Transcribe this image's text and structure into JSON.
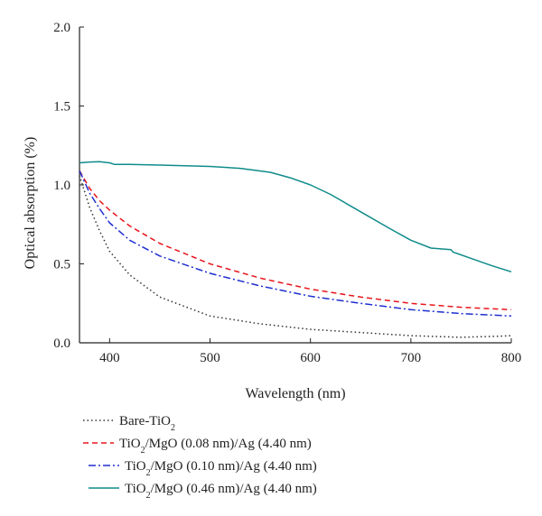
{
  "chart_data": {
    "type": "line",
    "xlabel": "Wavelength (nm)",
    "ylabel": "Optical absorption (%)",
    "xlim": [
      370,
      800
    ],
    "ylim": [
      0,
      2.0
    ],
    "x_ticks": [
      400,
      500,
      600,
      700,
      800
    ],
    "y_ticks": [
      0.0,
      0.5,
      1.0,
      1.5,
      2.0
    ],
    "x_tick_labels": [
      "400",
      "500",
      "600",
      "700",
      "800"
    ],
    "y_tick_labels": [
      "0.0",
      "0.5",
      "1.0",
      "1.5",
      "2.0"
    ],
    "grid": false,
    "legend_position": "bottom",
    "series": [
      {
        "name": "Bare-TiO2",
        "legend_parts": [
          {
            "t": "Bare-TiO",
            "sub": false
          },
          {
            "t": "2",
            "sub": true
          }
        ],
        "color": "#333333",
        "dash": "1.5,3",
        "x": [
          370,
          380,
          390,
          400,
          420,
          450,
          500,
          550,
          600,
          650,
          700,
          750,
          790,
          800
        ],
        "y": [
          1.06,
          0.86,
          0.71,
          0.58,
          0.43,
          0.29,
          0.17,
          0.12,
          0.085,
          0.065,
          0.045,
          0.035,
          0.042,
          0.045
        ]
      },
      {
        "name": "TiO2/MgO (0.08 nm)/Ag (4.40 nm)",
        "legend_parts": [
          {
            "t": "TiO",
            "sub": false
          },
          {
            "t": "2",
            "sub": true
          },
          {
            "t": "/MgO (0.08 nm)/Ag (4.40 nm)",
            "sub": false
          }
        ],
        "color": "#e8141c",
        "dash": "6,4",
        "x": [
          370,
          380,
          390,
          400,
          420,
          450,
          500,
          550,
          600,
          650,
          700,
          750,
          800
        ],
        "y": [
          1.09,
          0.98,
          0.9,
          0.84,
          0.74,
          0.63,
          0.5,
          0.41,
          0.34,
          0.29,
          0.25,
          0.225,
          0.21
        ]
      },
      {
        "name": "TiO2/MgO (0.10 nm)/Ag (4.40 nm)",
        "legend_parts": [
          {
            "t": "TiO",
            "sub": false
          },
          {
            "t": "2",
            "sub": true
          },
          {
            "t": "/MgO (0.10 nm)/Ag (4.40 nm)",
            "sub": false
          }
        ],
        "color": "#1f2fcf",
        "dash": "8,3,2,3",
        "x": [
          370,
          380,
          390,
          400,
          420,
          450,
          500,
          550,
          600,
          650,
          700,
          750,
          800
        ],
        "y": [
          1.09,
          0.95,
          0.85,
          0.76,
          0.65,
          0.55,
          0.44,
          0.36,
          0.295,
          0.25,
          0.21,
          0.185,
          0.17
        ]
      },
      {
        "name": "TiO2/MgO (0.46 nm)/Ag (4.40 nm)",
        "legend_parts": [
          {
            "t": "TiO",
            "sub": false
          },
          {
            "t": "2",
            "sub": true
          },
          {
            "t": "/MgO (0.46 nm)/Ag (4.40 nm)",
            "sub": false
          }
        ],
        "color": "#0f8c8a",
        "dash": "",
        "x": [
          370,
          380,
          390,
          400,
          405,
          420,
          450,
          500,
          530,
          560,
          580,
          600,
          620,
          650,
          680,
          700,
          720,
          740,
          742,
          760,
          780,
          800
        ],
        "y": [
          1.14,
          1.145,
          1.147,
          1.14,
          1.13,
          1.13,
          1.126,
          1.117,
          1.105,
          1.08,
          1.045,
          1.0,
          0.94,
          0.83,
          0.72,
          0.65,
          0.6,
          0.59,
          0.575,
          0.535,
          0.49,
          0.45
        ]
      }
    ]
  }
}
